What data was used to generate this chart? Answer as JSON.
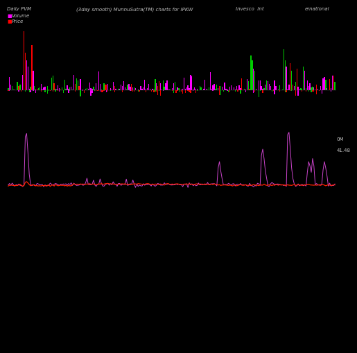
{
  "title_left": "Daily PVM",
  "title_center": "(3day smooth) MunnuSutra(TM) charts for IPKW",
  "title_right_1": "Invesco  Int",
  "title_right_2": "ernational",
  "legend_volume_color": "#ff00ff",
  "legend_price_color": "#ff0000",
  "bg_color": "#000000",
  "text_color": "#c0c0c0",
  "label_right_volume": "0M",
  "label_right_price": "41.48",
  "n_points": 250,
  "seed": 42
}
